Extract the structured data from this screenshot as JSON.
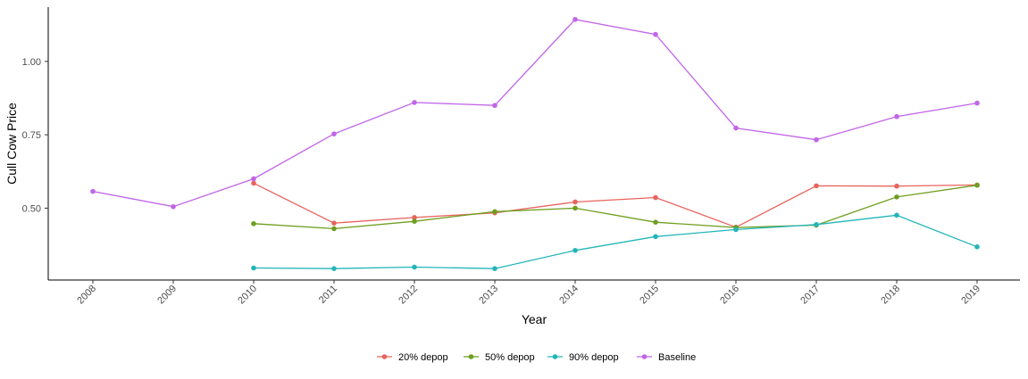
{
  "chart_data": {
    "type": "line",
    "title": "",
    "xlabel": "Year",
    "ylabel": "Cull Cow Price",
    "x": [
      2008,
      2009,
      2010,
      2011,
      2012,
      2013,
      2014,
      2015,
      2016,
      2017,
      2018,
      2019
    ],
    "x_tick_labels": [
      "2008",
      "2009",
      "2010",
      "2011",
      "2012",
      "2013",
      "2014",
      "2015",
      "2016",
      "2017",
      "2018",
      "2019"
    ],
    "y_ticks": [
      0.5,
      0.75,
      1.0
    ],
    "y_tick_labels": [
      "0.50",
      "0.75",
      "1.00"
    ],
    "ylim": [
      0.255,
      1.185
    ],
    "grid": false,
    "legend_position": "bottom",
    "series": [
      {
        "name": "20% depop",
        "color": "#E8635C",
        "x": [
          2010,
          2011,
          2012,
          2013,
          2014,
          2015,
          2016,
          2017,
          2018,
          2019
        ],
        "values": [
          0.585,
          0.449,
          0.468,
          0.484,
          0.521,
          0.536,
          0.435,
          0.576,
          0.575,
          0.579
        ]
      },
      {
        "name": "50% depop",
        "color": "#6E9E1E",
        "x": [
          2010,
          2011,
          2012,
          2013,
          2014,
          2015,
          2016,
          2017,
          2018,
          2019
        ],
        "values": [
          0.447,
          0.43,
          0.455,
          0.488,
          0.5,
          0.452,
          0.434,
          0.442,
          0.538,
          0.578
        ]
      },
      {
        "name": "90% depop",
        "color": "#23B5B9",
        "x": [
          2010,
          2011,
          2012,
          2013,
          2014,
          2015,
          2016,
          2017,
          2018,
          2019
        ],
        "values": [
          0.296,
          0.294,
          0.299,
          0.294,
          0.356,
          0.403,
          0.427,
          0.444,
          0.476,
          0.368
        ]
      },
      {
        "name": "Baseline",
        "color": "#C065E8",
        "x": [
          2008,
          2009,
          2010,
          2011,
          2012,
          2013,
          2014,
          2015,
          2016,
          2017,
          2018,
          2019
        ],
        "values": [
          0.557,
          0.505,
          0.6,
          0.753,
          0.86,
          0.85,
          1.143,
          1.092,
          0.773,
          0.733,
          0.812,
          0.858
        ]
      }
    ]
  }
}
